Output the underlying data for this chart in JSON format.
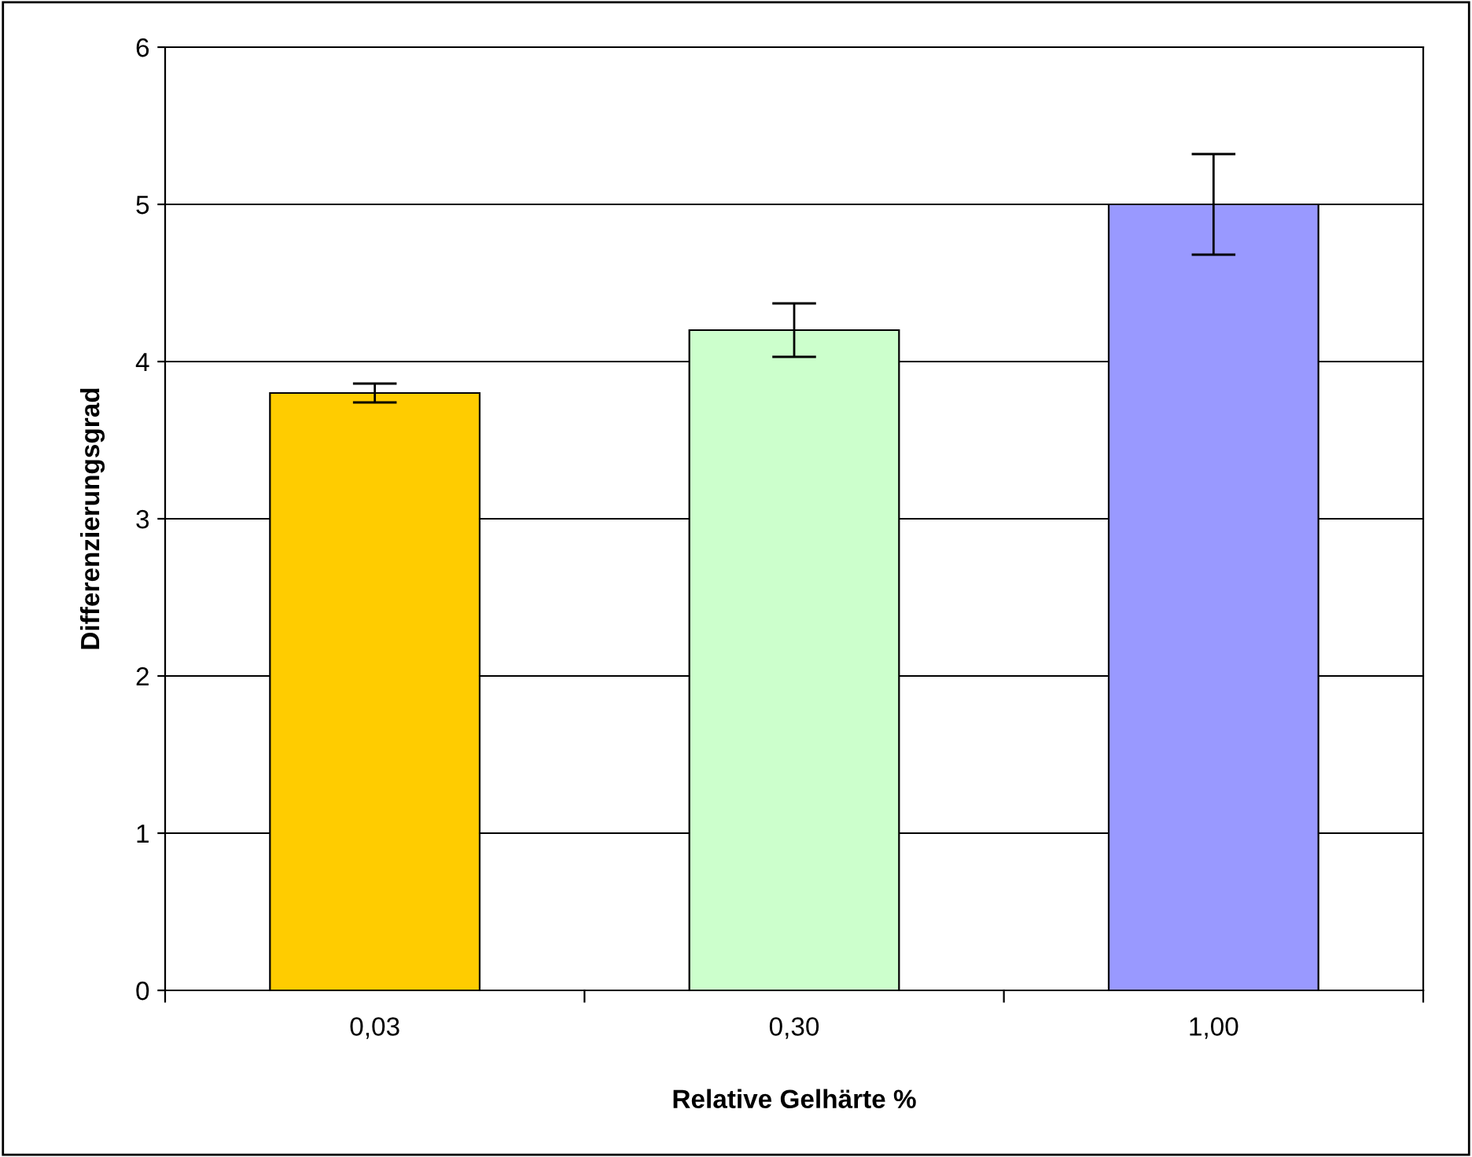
{
  "chart_data": {
    "type": "bar",
    "xlabel": "Relative Gelhärte %",
    "ylabel": "Differenzierungsgrad",
    "categories": [
      "0,03",
      "0,30",
      "1,00"
    ],
    "values": [
      3.8,
      4.2,
      5.0
    ],
    "colors": [
      "#ffcc00",
      "#ccffcc",
      "#9999ff"
    ],
    "errors": [
      0.06,
      0.17,
      0.32
    ],
    "ylim": [
      0,
      6
    ],
    "yticks": [
      0,
      1,
      2,
      3,
      4,
      5,
      6
    ],
    "grid": "y",
    "legend": false
  }
}
